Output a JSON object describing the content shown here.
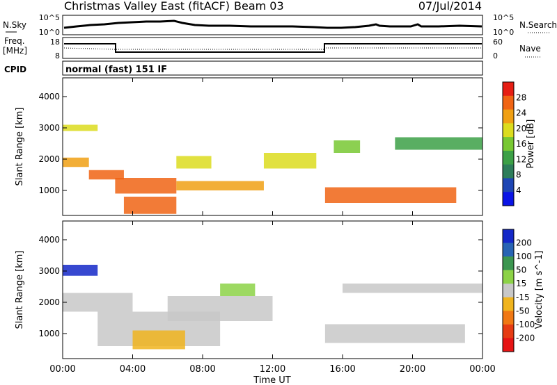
{
  "header": {
    "radar": "Christmas Valley East (fitACF)",
    "beam": "Beam 03",
    "date": "07/Jul/2014"
  },
  "noise_panel": {
    "left_label": "N.Sky",
    "right_label": "N.Search",
    "ticks": [
      "10^5",
      "10^0"
    ]
  },
  "freq_panel": {
    "left_label_line1": "Freq.",
    "left_label_line2": "[MHz]",
    "right_label": "Nave",
    "left_ticks": [
      "18",
      "8"
    ],
    "right_ticks": [
      "60",
      "0"
    ]
  },
  "cpid_panel": {
    "label": "CPID",
    "mode": "normal (fast) 151 IF"
  },
  "chart_data": [
    {
      "type": "heatmap",
      "title": "",
      "ylabel": "Slant Range [km]",
      "xlabel": "",
      "y_ticks": [
        "1000",
        "2000",
        "3000",
        "4000"
      ],
      "ylim": [
        200,
        4600
      ],
      "colorbar": {
        "label": "Power [dB]",
        "ticks": [
          "4",
          "8",
          "12",
          "16",
          "20",
          "24",
          "28"
        ],
        "colors": [
          "#0a14e6",
          "#1e46b4",
          "#2d7d5a",
          "#3ca046",
          "#78c832",
          "#dcdc1e",
          "#f0a014",
          "#f06414",
          "#e61e14"
        ]
      },
      "echo_bands": [
        {
          "x": [
            0,
            2
          ],
          "y": [
            2900,
            3100
          ],
          "power": 20
        },
        {
          "x": [
            0,
            1.5
          ],
          "y": [
            1750,
            2050
          ],
          "power": 24
        },
        {
          "x": [
            1.5,
            3.5
          ],
          "y": [
            1350,
            1650
          ],
          "power": 28
        },
        {
          "x": [
            3,
            6.5
          ],
          "y": [
            900,
            1400
          ],
          "power": 28
        },
        {
          "x": [
            3.5,
            6.5
          ],
          "y": [
            250,
            800
          ],
          "power": 28
        },
        {
          "x": [
            6.5,
            8.5
          ],
          "y": [
            1700,
            2100
          ],
          "power": 20
        },
        {
          "x": [
            6.5,
            11.5
          ],
          "y": [
            1000,
            1300
          ],
          "power": 24
        },
        {
          "x": [
            11.5,
            14.5
          ],
          "y": [
            1700,
            2200
          ],
          "power": 20
        },
        {
          "x": [
            15,
            22.5
          ],
          "y": [
            600,
            1100
          ],
          "power": 28
        },
        {
          "x": [
            15.5,
            17
          ],
          "y": [
            2200,
            2600
          ],
          "power": 16
        },
        {
          "x": [
            19,
            24
          ],
          "y": [
            2300,
            2700
          ],
          "power": 12
        }
      ]
    },
    {
      "type": "heatmap",
      "title": "",
      "ylabel": "Slant Range [km]",
      "xlabel": "Time UT",
      "x_ticks": [
        "00:00",
        "04:00",
        "08:00",
        "12:00",
        "16:00",
        "20:00",
        "00:00"
      ],
      "y_ticks": [
        "1000",
        "2000",
        "3000",
        "4000"
      ],
      "ylim": [
        200,
        4600
      ],
      "colorbar": {
        "label": "Velocity [m s^-1]",
        "ticks": [
          "200",
          "100",
          "50",
          "15",
          "-15",
          "-50",
          "-100",
          "-200"
        ],
        "colors": [
          "#1428c8",
          "#2864b4",
          "#3c9650",
          "#8cd246",
          "#c8c8c8",
          "#f0b41e",
          "#f07814",
          "#e63c14",
          "#e61414"
        ]
      },
      "echo_bands": [
        {
          "x": [
            0,
            2
          ],
          "y": [
            2850,
            3200
          ],
          "velocity": 200
        },
        {
          "x": [
            0,
            4
          ],
          "y": [
            1700,
            2300
          ],
          "velocity": 0
        },
        {
          "x": [
            2,
            9
          ],
          "y": [
            600,
            1700
          ],
          "velocity": 0
        },
        {
          "x": [
            4,
            7
          ],
          "y": [
            500,
            1100
          ],
          "velocity": -50
        },
        {
          "x": [
            6,
            12
          ],
          "y": [
            1400,
            2200
          ],
          "velocity": 0
        },
        {
          "x": [
            9,
            11
          ],
          "y": [
            2200,
            2600
          ],
          "velocity": 50
        },
        {
          "x": [
            15,
            23
          ],
          "y": [
            700,
            1300
          ],
          "velocity": 0
        },
        {
          "x": [
            16,
            24
          ],
          "y": [
            2300,
            2600
          ],
          "velocity": 0
        }
      ]
    }
  ]
}
